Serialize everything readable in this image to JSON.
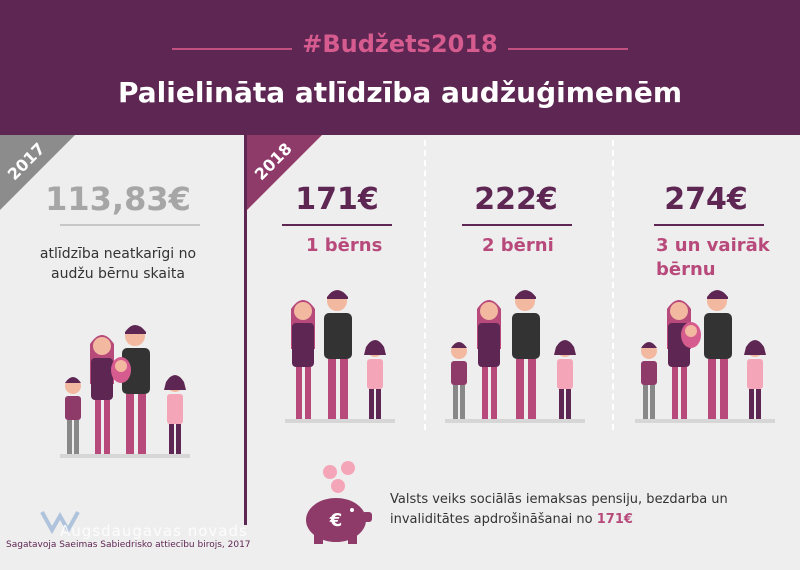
{
  "header": {
    "hashtag": "#Budžets2018",
    "title": "Palielināta atlīdzība audžuģimenēm"
  },
  "year_2017": {
    "badge": "2017",
    "amount": "113,83€",
    "description_line1": "atlīdzība neatkarīgi no",
    "description_line2": "audžu bērnu skaita"
  },
  "year_2018": {
    "badge": "2018",
    "columns": [
      {
        "amount": "171€",
        "kids_line1": "1 bērns",
        "kids_line2": ""
      },
      {
        "amount": "222€",
        "kids_line1": "2 bērni",
        "kids_line2": ""
      },
      {
        "amount": "274€",
        "kids_line1": "3 un vairāk",
        "kids_line2": "bērnu"
      }
    ]
  },
  "note": {
    "line1": "Valsts veiks sociālās iemaksas pensiju, bezdarba un",
    "line2_prefix": "invaliditātes apdrošināšanai no",
    "line2_amount": "171€"
  },
  "piggy_symbol": "€",
  "watermark": "Augsdaugavas novads",
  "credit": "Sagatavoja Saeimas Sabiedrisko attiecību birojs, 2017",
  "colors": {
    "header_bg": "#5e2653",
    "accent_pink": "#d65b8e",
    "kids_text": "#b84a7b",
    "ribbon_2017": "#8c8c8c",
    "ribbon_2018": "#8f3b6a",
    "background": "#eeeeee"
  }
}
